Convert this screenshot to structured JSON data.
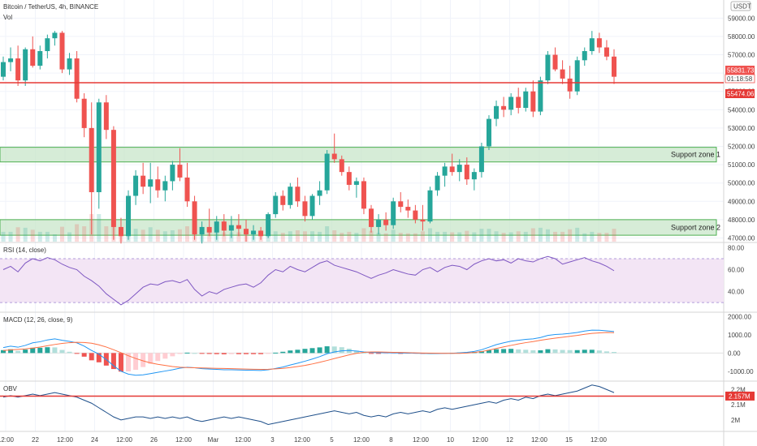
{
  "header": {
    "title": "Bitcoin / TetherUS, 4h, BINANCE",
    "volume_label": "Vol",
    "currency_badge": "USDT"
  },
  "colors": {
    "up": "#26a69a",
    "down": "#ef5350",
    "zone_fill": "#c8e6c9",
    "zone_border": "#4caf50",
    "level_line": "#e53935",
    "rsi_line": "#7e57c2",
    "rsi_band": "#f3e5f5",
    "macd_line": "#2196f3",
    "signal_line": "#ff7043",
    "obv_line": "#1e4f8a"
  },
  "chart_data": [
    {
      "type": "candlestick",
      "name": "price",
      "yticks": [
        "59000.00",
        "58000.00",
        "57000.00",
        "56000.00",
        "55000.00",
        "54000.00",
        "53000.00",
        "52000.00",
        "51000.00",
        "50000.00",
        "49000.00",
        "48000.00",
        "47000.00"
      ],
      "ylim": [
        46800,
        59900
      ],
      "x_labels": [
        "12:00",
        "22",
        "12:00",
        "24",
        "12:00",
        "26",
        "12:00",
        "Mar",
        "12:00",
        "3",
        "12:00",
        "5",
        "12:00",
        "8",
        "12:00",
        "10",
        "12:00",
        "12",
        "12:00",
        "15",
        "12:00"
      ],
      "price_flags": {
        "last": "55831.73",
        "countdown": "01:18:58",
        "level": "55474.06"
      },
      "level_line": 55474.06,
      "zones": [
        {
          "label": "Support zone 1",
          "low": 51150,
          "high": 51950
        },
        {
          "label": "Support zone 2",
          "low": 47150,
          "high": 48000
        }
      ],
      "candles": [
        [
          55800,
          56900,
          55600,
          56600
        ],
        [
          56600,
          57400,
          56100,
          56800
        ],
        [
          56800,
          57500,
          55300,
          55600
        ],
        [
          55600,
          57400,
          55300,
          57300
        ],
        [
          57300,
          58000,
          56300,
          56400
        ],
        [
          56400,
          57500,
          56200,
          57200
        ],
        [
          57200,
          58100,
          56800,
          57900
        ],
        [
          57900,
          58300,
          57500,
          58200
        ],
        [
          58200,
          58300,
          56000,
          56200
        ],
        [
          56200,
          57100,
          55900,
          56800
        ],
        [
          56800,
          57200,
          54400,
          54600
        ],
        [
          54600,
          54900,
          52500,
          53000
        ],
        [
          53000,
          54400,
          47200,
          49500
        ],
        [
          49500,
          54600,
          48600,
          54400
        ],
        [
          54400,
          54800,
          52400,
          52900
        ],
        [
          52900,
          53100,
          46900,
          47600
        ],
        [
          47600,
          48100,
          46700,
          47100
        ],
        [
          47100,
          49600,
          46900,
          49300
        ],
        [
          49300,
          50700,
          48800,
          50400
        ],
        [
          50400,
          51100,
          49400,
          49800
        ],
        [
          49800,
          51100,
          48900,
          50200
        ],
        [
          50200,
          50900,
          49200,
          49600
        ],
        [
          49600,
          50400,
          49000,
          50100
        ],
        [
          50100,
          51200,
          49600,
          51000
        ],
        [
          51000,
          51900,
          50100,
          50300
        ],
        [
          50300,
          51100,
          48700,
          49000
        ],
        [
          49000,
          49300,
          46900,
          47200
        ],
        [
          47200,
          47900,
          46700,
          47600
        ],
        [
          47600,
          48600,
          47100,
          47300
        ],
        [
          47300,
          48200,
          46900,
          47900
        ],
        [
          47900,
          48300,
          47100,
          47400
        ],
        [
          47400,
          48200,
          47000,
          47700
        ],
        [
          47700,
          48300,
          47100,
          47500
        ],
        [
          47500,
          48000,
          46800,
          47200
        ],
        [
          47200,
          47700,
          46900,
          47400
        ],
        [
          47400,
          47600,
          46900,
          47100
        ],
        [
          47100,
          48400,
          47000,
          48300
        ],
        [
          48300,
          49500,
          48100,
          49300
        ],
        [
          49300,
          49600,
          48500,
          48800
        ],
        [
          48800,
          50000,
          48600,
          49800
        ],
        [
          49800,
          50300,
          48700,
          49000
        ],
        [
          49000,
          49300,
          47900,
          48200
        ],
        [
          48200,
          49400,
          48000,
          49300
        ],
        [
          49300,
          50100,
          48800,
          49600
        ],
        [
          49600,
          51800,
          49400,
          51600
        ],
        [
          51600,
          52700,
          51100,
          51300
        ],
        [
          51300,
          51500,
          50400,
          50600
        ],
        [
          50600,
          50900,
          49600,
          49900
        ],
        [
          49900,
          50300,
          49200,
          50100
        ],
        [
          50100,
          50300,
          48300,
          48600
        ],
        [
          48600,
          48800,
          47300,
          47600
        ],
        [
          47600,
          48300,
          47200,
          48000
        ],
        [
          48000,
          48400,
          47400,
          47700
        ],
        [
          47700,
          49200,
          47500,
          49000
        ],
        [
          49000,
          49500,
          48400,
          48700
        ],
        [
          48700,
          49100,
          48100,
          48500
        ],
        [
          48500,
          48800,
          47800,
          48000
        ],
        [
          48000,
          48800,
          47400,
          47900
        ],
        [
          47900,
          49800,
          47800,
          49600
        ],
        [
          49600,
          50600,
          49300,
          50400
        ],
        [
          50400,
          51100,
          49800,
          50900
        ],
        [
          50900,
          51600,
          50400,
          50600
        ],
        [
          50600,
          51300,
          50100,
          51000
        ],
        [
          51000,
          51400,
          49900,
          50200
        ],
        [
          50200,
          50800,
          49600,
          50600
        ],
        [
          50600,
          52200,
          50300,
          52000
        ],
        [
          52000,
          53700,
          51800,
          53500
        ],
        [
          53500,
          54500,
          53100,
          54200
        ],
        [
          54200,
          54700,
          53600,
          54000
        ],
        [
          54000,
          54900,
          53700,
          54700
        ],
        [
          54700,
          55200,
          53800,
          54100
        ],
        [
          54100,
          55200,
          53900,
          55000
        ],
        [
          55000,
          55600,
          53600,
          53900
        ],
        [
          53900,
          55800,
          53700,
          55600
        ],
        [
          55600,
          57200,
          55400,
          57000
        ],
        [
          57000,
          57400,
          56100,
          56200
        ],
        [
          56200,
          56700,
          55400,
          55700
        ],
        [
          55700,
          56400,
          54600,
          55000
        ],
        [
          55000,
          56900,
          54800,
          56700
        ],
        [
          56700,
          57400,
          56400,
          57200
        ],
        [
          57200,
          58300,
          57000,
          57900
        ],
        [
          57900,
          58200,
          57100,
          57400
        ],
        [
          57400,
          57800,
          56700,
          56900
        ],
        [
          56900,
          57300,
          55400,
          55800
        ]
      ]
    },
    {
      "type": "bar",
      "name": "Vol"
    },
    {
      "type": "line",
      "name": "RSI",
      "title": "RSI (14, close)",
      "yticks": [
        "80.00",
        "60.00",
        "40.00"
      ],
      "ylim": [
        22,
        84
      ],
      "band": [
        30,
        70
      ],
      "values": [
        60,
        63,
        58,
        66,
        70,
        68,
        71,
        69,
        65,
        62,
        60,
        54,
        50,
        45,
        38,
        33,
        28,
        32,
        38,
        44,
        47,
        46,
        49,
        50,
        48,
        51,
        42,
        36,
        40,
        38,
        42,
        44,
        46,
        47,
        44,
        48,
        55,
        60,
        58,
        63,
        60,
        58,
        62,
        66,
        68,
        64,
        62,
        60,
        58,
        55,
        52,
        55,
        57,
        60,
        58,
        56,
        55,
        60,
        62,
        58,
        62,
        64,
        63,
        60,
        65,
        68,
        70,
        68,
        69,
        66,
        70,
        68,
        67,
        70,
        72,
        70,
        65,
        67,
        69,
        71,
        68,
        66,
        63,
        59
      ]
    },
    {
      "type": "line",
      "name": "MACD",
      "title": "MACD (12, 26, close, 9)",
      "yticks": [
        "2000.00",
        "1000.00",
        "0.00",
        "-1000.00"
      ],
      "ylim": [
        -1500,
        2200
      ],
      "macd": [
        300,
        380,
        320,
        420,
        560,
        620,
        720,
        780,
        700,
        640,
        560,
        380,
        140,
        -60,
        -360,
        -700,
        -1000,
        -1160,
        -1220,
        -1200,
        -1130,
        -1060,
        -990,
        -920,
        -830,
        -780,
        -810,
        -860,
        -880,
        -900,
        -920,
        -920,
        -930,
        -940,
        -950,
        -960,
        -920,
        -850,
        -770,
        -660,
        -560,
        -450,
        -330,
        -200,
        -40,
        60,
        120,
        140,
        110,
        60,
        30,
        20,
        15,
        10,
        0,
        -5,
        -10,
        -20,
        -30,
        -30,
        -20,
        -10,
        10,
        40,
        90,
        180,
        320,
        460,
        560,
        650,
        700,
        750,
        780,
        850,
        970,
        1020,
        1040,
        1080,
        1130,
        1210,
        1260,
        1250,
        1220,
        1180
      ],
      "signal": [
        140,
        170,
        200,
        230,
        270,
        330,
        400,
        470,
        530,
        570,
        590,
        580,
        540,
        450,
        330,
        180,
        20,
        -150,
        -300,
        -430,
        -540,
        -620,
        -680,
        -740,
        -780,
        -800,
        -810,
        -820,
        -830,
        -840,
        -850,
        -860,
        -870,
        -880,
        -890,
        -900,
        -890,
        -870,
        -840,
        -800,
        -740,
        -680,
        -600,
        -510,
        -410,
        -300,
        -200,
        -100,
        -20,
        40,
        60,
        60,
        50,
        40,
        30,
        20,
        10,
        0,
        -5,
        -10,
        -15,
        -20,
        -15,
        0,
        30,
        80,
        160,
        250,
        340,
        420,
        500,
        570,
        630,
        700,
        760,
        820,
        870,
        920,
        970,
        1030,
        1080,
        1110,
        1130,
        1120
      ],
      "histogram": [
        160,
        210,
        120,
        190,
        290,
        290,
        320,
        310,
        170,
        70,
        -30,
        -200,
        -400,
        -510,
        -690,
        -880,
        -1020,
        -1010,
        -920,
        -770,
        -590,
        -440,
        -310,
        -180,
        -50,
        20,
        0,
        -40,
        -50,
        -60,
        -70,
        -60,
        -60,
        -60,
        -60,
        -60,
        -30,
        20,
        70,
        140,
        180,
        230,
        270,
        310,
        370,
        360,
        320,
        240,
        130,
        20,
        -30,
        -40,
        -35,
        -30,
        -30,
        -25,
        -20,
        -20,
        -25,
        -20,
        -5,
        10,
        25,
        40,
        60,
        100,
        160,
        210,
        220,
        230,
        200,
        180,
        150,
        150,
        210,
        200,
        170,
        160,
        160,
        180,
        180,
        140,
        90,
        60
      ]
    },
    {
      "type": "line",
      "name": "OBV",
      "title": "OBV",
      "yticks": [
        "2.2M",
        "2.1M",
        "2M"
      ],
      "flag": "2.157M",
      "ylim": [
        1.93,
        2.25
      ],
      "level_line": 2.157,
      "values": [
        2.15,
        2.16,
        2.15,
        2.16,
        2.17,
        2.16,
        2.17,
        2.18,
        2.17,
        2.16,
        2.15,
        2.13,
        2.11,
        2.08,
        2.05,
        2.02,
        2.0,
        2.01,
        2.02,
        2.02,
        2.01,
        2.02,
        2.01,
        2.02,
        2.01,
        2.02,
        2.0,
        1.99,
        2.0,
        2.01,
        2.02,
        2.01,
        2.02,
        2.01,
        2.0,
        1.99,
        1.97,
        1.98,
        1.99,
        2.0,
        2.01,
        2.02,
        2.03,
        2.04,
        2.05,
        2.06,
        2.05,
        2.04,
        2.05,
        2.03,
        2.02,
        2.03,
        2.02,
        2.04,
        2.05,
        2.04,
        2.05,
        2.06,
        2.05,
        2.07,
        2.08,
        2.07,
        2.08,
        2.09,
        2.1,
        2.11,
        2.12,
        2.11,
        2.13,
        2.14,
        2.13,
        2.15,
        2.14,
        2.16,
        2.17,
        2.16,
        2.17,
        2.18,
        2.19,
        2.21,
        2.23,
        2.22,
        2.2,
        2.18
      ]
    }
  ]
}
